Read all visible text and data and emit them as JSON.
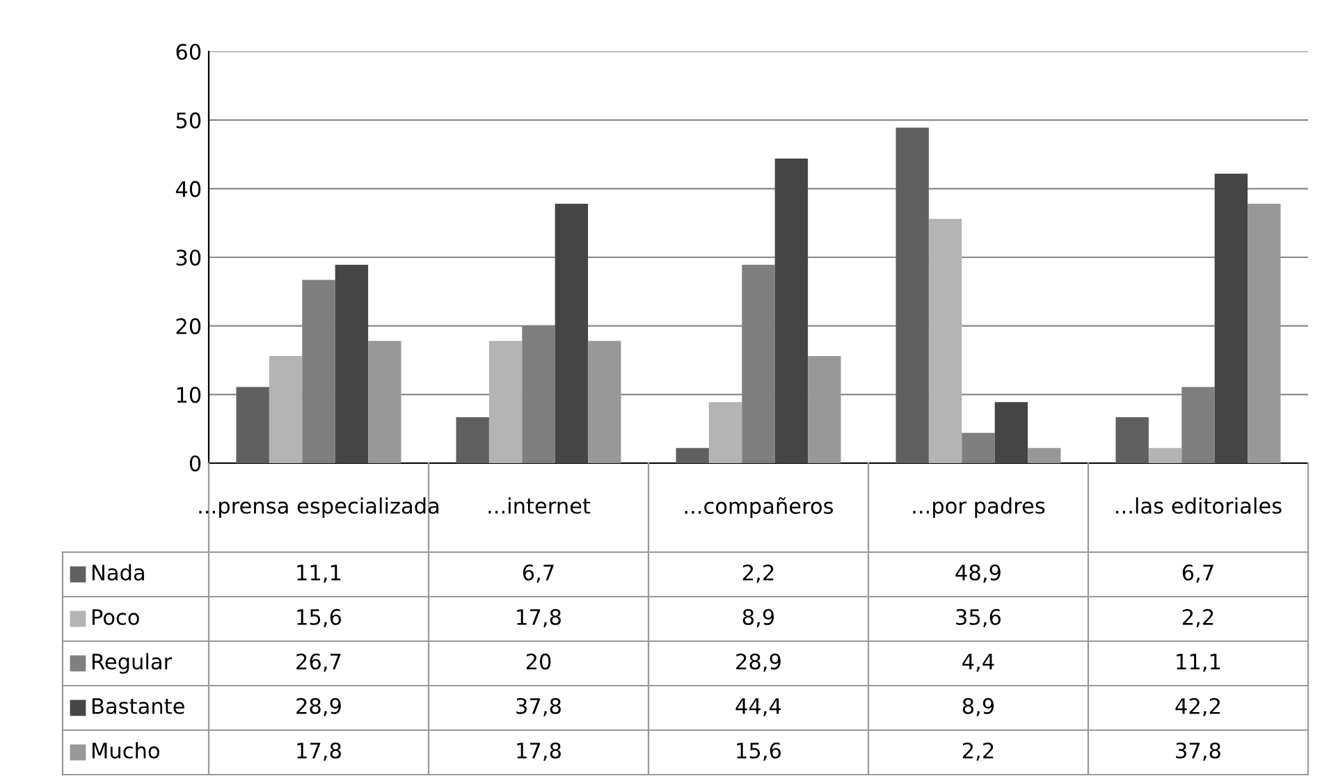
{
  "chart_data": {
    "type": "bar",
    "categories": [
      "...prensa especializada",
      "...internet",
      "...compañeros",
      "...por padres",
      "...las editoriales"
    ],
    "series": [
      {
        "name": "Nada",
        "color": "#606060",
        "values": [
          11.1,
          6.7,
          2.2,
          48.9,
          6.7
        ],
        "value_labels": [
          "11,1",
          "6,7",
          "2,2",
          "48,9",
          "6,7"
        ]
      },
      {
        "name": "Poco",
        "color": "#b4b4b4",
        "values": [
          15.6,
          17.8,
          8.9,
          35.6,
          2.2
        ],
        "value_labels": [
          "15,6",
          "17,8",
          "8,9",
          "35,6",
          "2,2"
        ]
      },
      {
        "name": "Regular",
        "color": "#7f7f7f",
        "values": [
          26.7,
          20,
          28.9,
          4.4,
          11.1
        ],
        "value_labels": [
          "26,7",
          "20",
          "28,9",
          "4,4",
          "11,1"
        ]
      },
      {
        "name": "Bastante",
        "color": "#454545",
        "values": [
          28.9,
          37.8,
          44.4,
          8.9,
          42.2
        ],
        "value_labels": [
          "28,9",
          "37,8",
          "44,4",
          "8,9",
          "42,2"
        ]
      },
      {
        "name": "Mucho",
        "color": "#989898",
        "values": [
          17.8,
          17.8,
          15.6,
          2.2,
          37.8
        ],
        "value_labels": [
          "17,8",
          "17,8",
          "15,6",
          "2,2",
          "37,8"
        ]
      }
    ],
    "ylim": [
      0,
      60
    ],
    "yticks": [
      0,
      10,
      20,
      30,
      40,
      50,
      60
    ],
    "grid": "y",
    "legend": "bottom left"
  }
}
